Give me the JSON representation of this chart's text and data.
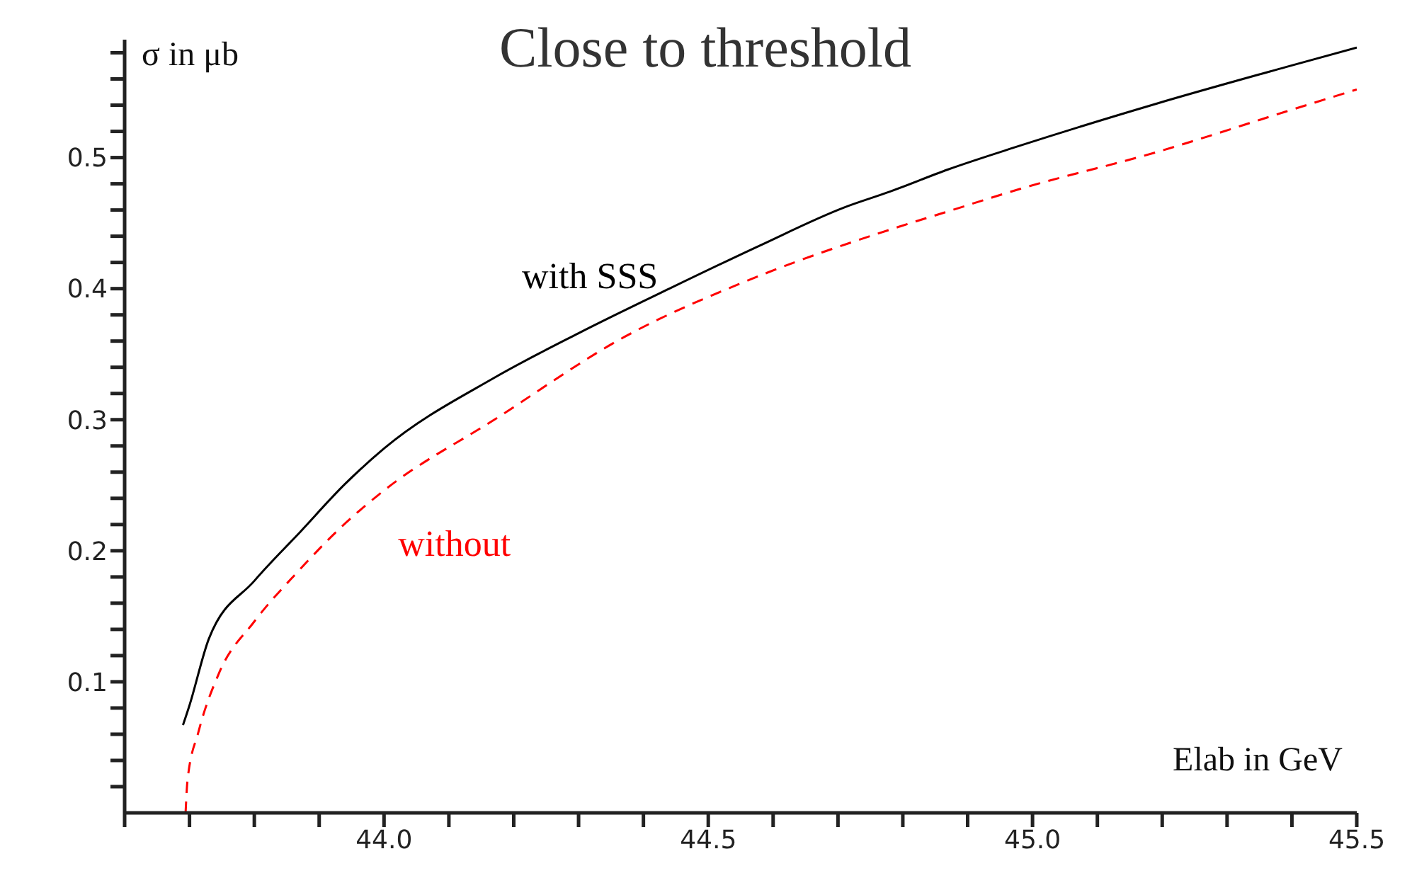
{
  "chart_data": {
    "type": "line",
    "title": "Close to threshold",
    "xlabel": "Elab in GeV",
    "ylabel": "σ in μb",
    "xlim": [
      43.6,
      45.5
    ],
    "xticks": [
      {
        "value": 43.6,
        "label": null
      },
      {
        "value": 43.7,
        "label": null
      },
      {
        "value": 43.8,
        "label": null
      },
      {
        "value": 43.9,
        "label": null
      },
      {
        "value": 44,
        "label": "44.0"
      },
      {
        "value": 44.1,
        "label": null
      },
      {
        "value": 44.2,
        "label": null
      },
      {
        "value": 44.3,
        "label": null
      },
      {
        "value": 44.4,
        "label": null
      },
      {
        "value": 44.5,
        "label": "44.5"
      },
      {
        "value": 44.6,
        "label": null
      },
      {
        "value": 44.7,
        "label": null
      },
      {
        "value": 44.8,
        "label": null
      },
      {
        "value": 44.9,
        "label": null
      },
      {
        "value": 45,
        "label": "45.0"
      },
      {
        "value": 45.1,
        "label": null
      },
      {
        "value": 45.2,
        "label": null
      },
      {
        "value": 45.3,
        "label": null
      },
      {
        "value": 45.4,
        "label": null
      },
      {
        "value": 45.5,
        "label": "45.5"
      }
    ],
    "ylim": [
      0,
      0.59
    ],
    "yticks": [
      {
        "value": 0.02,
        "label": null
      },
      {
        "value": 0.04,
        "label": null
      },
      {
        "value": 0.06,
        "label": null
      },
      {
        "value": 0.08,
        "label": null
      },
      0.1,
      {
        "value": 0.12,
        "label": null
      },
      {
        "value": 0.14,
        "label": null
      },
      {
        "value": 0.16,
        "label": null
      },
      {
        "value": 0.18,
        "label": null
      },
      0.2,
      {
        "value": 0.22,
        "label": null
      },
      {
        "value": 0.24,
        "label": null
      },
      {
        "value": 0.26,
        "label": null
      },
      {
        "value": 0.28,
        "label": null
      },
      0.3,
      {
        "value": 0.32,
        "label": null
      },
      {
        "value": 0.34,
        "label": null
      },
      {
        "value": 0.36,
        "label": null
      },
      {
        "value": 0.38,
        "label": null
      },
      0.4,
      {
        "value": 0.42,
        "label": null
      },
      {
        "value": 0.44,
        "label": null
      },
      {
        "value": 0.46,
        "label": null
      },
      {
        "value": 0.48,
        "label": null
      },
      0.5,
      {
        "value": 0.52,
        "label": null
      },
      {
        "value": 0.54,
        "label": null
      },
      {
        "value": 0.56,
        "label": null
      },
      {
        "value": 0.58,
        "label": null
      }
    ],
    "marker": "none",
    "series": [
      {
        "name": "with SSS",
        "color": "#000000",
        "line_style": "solid",
        "x": [
          43.69,
          43.7,
          43.73,
          43.8,
          43.87,
          43.94,
          44.0,
          44.17,
          44.3,
          44.44,
          44.58,
          44.71,
          44.78,
          44.87,
          44.98,
          45.19,
          45.39,
          45.5
        ],
        "values": [
          0.067,
          0.082,
          0.133,
          0.177,
          0.214,
          0.251,
          0.278,
          0.332,
          0.366,
          0.4,
          0.433,
          0.462,
          0.474,
          0.491,
          0.509,
          0.541,
          0.569,
          0.584
        ]
      },
      {
        "name": "without",
        "color": "#ff0000",
        "line_style": "dashed",
        "x": [
          43.694,
          43.697,
          43.714,
          43.745,
          43.8,
          43.867,
          43.936,
          44.0,
          44.17,
          44.37,
          44.58,
          44.78,
          44.87,
          44.98,
          45.19,
          45.39,
          45.5
        ],
        "values": [
          0,
          0.025,
          0.062,
          0.106,
          0.146,
          0.184,
          0.219,
          0.246,
          0.3,
          0.363,
          0.41,
          0.445,
          0.459,
          0.476,
          0.504,
          0.535,
          0.552
        ]
      }
    ]
  }
}
